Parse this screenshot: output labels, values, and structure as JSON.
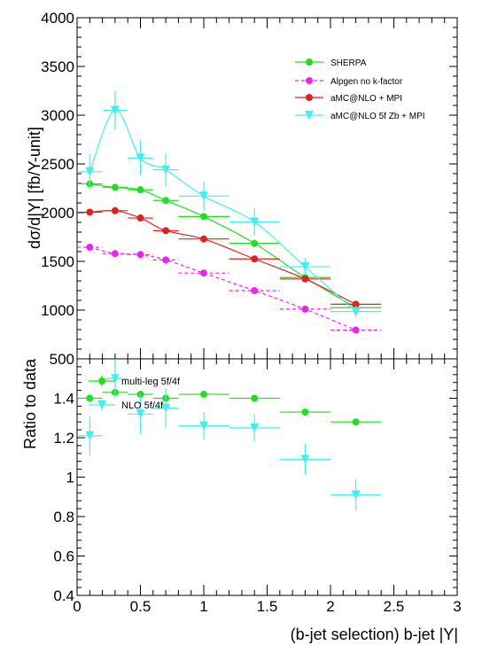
{
  "chart_data": [
    {
      "type": "line",
      "panel": "top",
      "xlim": [
        0,
        3
      ],
      "ylim": [
        500,
        4000
      ],
      "ylabel": "dσ/d|Y| [fb/Y-unit]",
      "xlabel": "",
      "yticks": [
        "4000",
        "3500",
        "3000",
        "2500",
        "2000",
        "1500",
        "1000",
        "500"
      ],
      "yticks_num": [
        4000,
        3500,
        3000,
        2500,
        2000,
        1500,
        1000,
        500
      ],
      "legend_position": "top-right",
      "series": [
        {
          "name": "SHERPA",
          "color": "#22dd22",
          "marker": "circle",
          "dashed": false,
          "x": [
            0.1,
            0.3,
            0.5,
            0.7,
            1.0,
            1.4,
            1.8,
            2.2
          ],
          "xerr": [
            0.1,
            0.1,
            0.1,
            0.1,
            0.2,
            0.2,
            0.2,
            0.2
          ],
          "y": [
            2295,
            2260,
            2235,
            2125,
            1960,
            1685,
            1335,
            1025
          ],
          "yerr": [
            0,
            0,
            0,
            0,
            0,
            0,
            0,
            0
          ]
        },
        {
          "name": "Alpgen no k-factor",
          "color": "#ee22ee",
          "marker": "circle",
          "dashed": true,
          "x": [
            0.1,
            0.3,
            0.5,
            0.7,
            1.0,
            1.4,
            1.8,
            2.2
          ],
          "xerr": [
            0.1,
            0.1,
            0.1,
            0.1,
            0.2,
            0.2,
            0.2,
            0.2
          ],
          "y": [
            1645,
            1580,
            1570,
            1515,
            1380,
            1200,
            1010,
            795
          ],
          "yerr": [
            0,
            0,
            0,
            0,
            0,
            0,
            0,
            0
          ]
        },
        {
          "name": "aMC@NLO + MPI",
          "color": "#dd2222",
          "marker": "circle",
          "dashed": false,
          "x": [
            0.1,
            0.3,
            0.5,
            0.7,
            1.0,
            1.4,
            1.8,
            2.2
          ],
          "xerr": [
            0.1,
            0.1,
            0.1,
            0.1,
            0.2,
            0.2,
            0.2,
            0.2
          ],
          "y": [
            2005,
            2020,
            1945,
            1815,
            1730,
            1525,
            1320,
            1060
          ],
          "yerr": [
            0,
            0,
            0,
            0,
            0,
            0,
            0,
            0
          ]
        },
        {
          "name": "aMC@NLO 5f Zb + MPI",
          "color": "#44eeee",
          "marker": "triangle-down",
          "dashed": false,
          "x": [
            0.1,
            0.3,
            0.5,
            0.7,
            1.0,
            1.4,
            1.8,
            2.2
          ],
          "xerr": [
            0.1,
            0.1,
            0.1,
            0.1,
            0.2,
            0.2,
            0.2,
            0.2
          ],
          "y": [
            2420,
            3050,
            2560,
            2440,
            2170,
            1905,
            1445,
            985
          ],
          "yerr": [
            180,
            200,
            180,
            170,
            150,
            140,
            90,
            60
          ]
        }
      ]
    },
    {
      "type": "scatter",
      "panel": "bottom",
      "xlim": [
        0,
        3
      ],
      "ylim": [
        0.4,
        1.6
      ],
      "ylabel": "Ratio to data",
      "xlabel": "(b-jet selection) b-jet |Y|",
      "yticks": [
        "1.4",
        "1.2",
        "1",
        "0.8",
        "0.6",
        "0.4"
      ],
      "yticks_num": [
        1.4,
        1.2,
        1.0,
        0.8,
        0.6,
        0.4
      ],
      "xticks": [
        "0",
        "0.5",
        "1",
        "1.5",
        "2",
        "2.5",
        "3"
      ],
      "xticks_num": [
        0,
        0.5,
        1,
        1.5,
        2,
        2.5,
        3
      ],
      "legend_position": "top-left",
      "series": [
        {
          "name": "multi-leg 5f/4f",
          "color": "#22dd22",
          "marker": "circle",
          "x": [
            0.1,
            0.3,
            0.5,
            0.7,
            1.0,
            1.4,
            1.8,
            2.2
          ],
          "xerr": [
            0.1,
            0.1,
            0.1,
            0.1,
            0.2,
            0.2,
            0.2,
            0.2
          ],
          "y": [
            1.4,
            1.43,
            1.42,
            1.4,
            1.42,
            1.4,
            1.33,
            1.28
          ],
          "yerr": [
            0,
            0,
            0,
            0,
            0,
            0,
            0,
            0
          ]
        },
        {
          "name": "NLO       5f/4f",
          "color": "#44eeee",
          "marker": "triangle-down",
          "x": [
            0.1,
            0.3,
            0.5,
            0.7,
            1.0,
            1.4,
            1.8,
            2.2
          ],
          "xerr": [
            0.1,
            0.1,
            0.1,
            0.1,
            0.2,
            0.2,
            0.2,
            0.2
          ],
          "y": [
            1.21,
            1.5,
            1.32,
            1.35,
            1.26,
            1.25,
            1.09,
            0.91
          ],
          "yerr": [
            0.1,
            0.1,
            0.1,
            0.1,
            0.07,
            0.07,
            0.08,
            0.08
          ]
        }
      ]
    }
  ]
}
